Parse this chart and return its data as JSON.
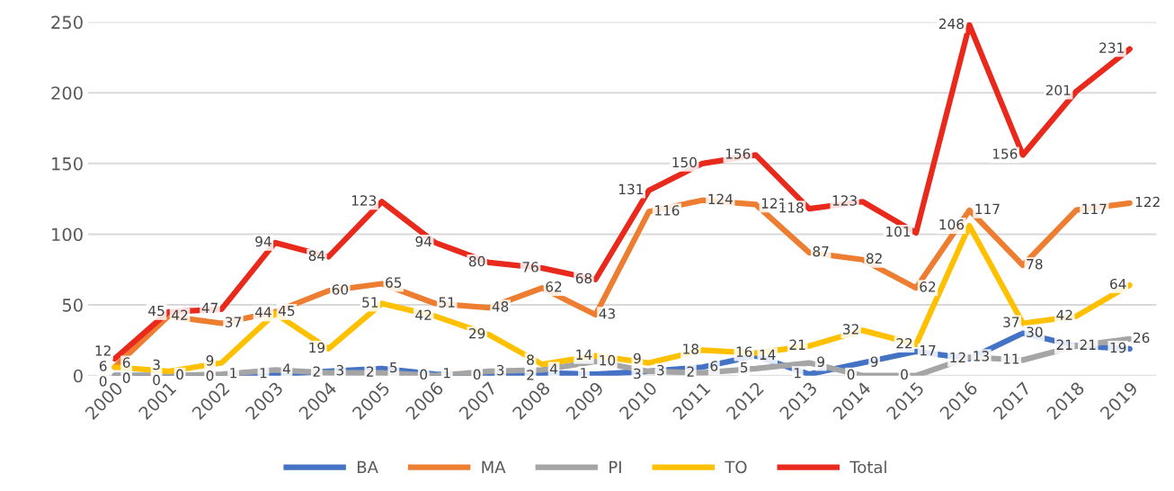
{
  "chart_data": {
    "type": "line",
    "categories": [
      "2000",
      "2001",
      "2002",
      "2003",
      "2004",
      "2005",
      "2006",
      "2007",
      "2008",
      "2009",
      "2010",
      "2011",
      "2012",
      "2013",
      "2014",
      "2015",
      "2016",
      "2017",
      "2018",
      "2019"
    ],
    "series": [
      {
        "name": "BA",
        "color": "#4472c4",
        "values": [
          0,
          0,
          0,
          1,
          3,
          5,
          1,
          0,
          2,
          1,
          3,
          6,
          14,
          1,
          9,
          17,
          12,
          30,
          21,
          19
        ]
      },
      {
        "name": "MA",
        "color": "#ed7d31",
        "values": [
          6,
          42,
          37,
          45,
          60,
          65,
          51,
          48,
          62,
          43,
          116,
          124,
          121,
          87,
          82,
          62,
          117,
          78,
          117,
          122
        ]
      },
      {
        "name": "PI",
        "color": "#a5a5a5",
        "values": [
          0,
          0,
          1,
          4,
          2,
          2,
          0,
          3,
          4,
          10,
          3,
          2,
          5,
          9,
          0,
          0,
          13,
          11,
          21,
          26
        ]
      },
      {
        "name": "TO",
        "color": "#ffc000",
        "values": [
          6,
          3,
          9,
          44,
          19,
          51,
          42,
          29,
          8,
          14,
          9,
          18,
          16,
          21,
          32,
          22,
          106,
          37,
          42,
          64
        ]
      },
      {
        "name": "Total",
        "color": "#e8291c",
        "values": [
          12,
          45,
          47,
          94,
          84,
          123,
          94,
          80,
          76,
          68,
          131,
          150,
          156,
          118,
          123,
          101,
          248,
          156,
          201,
          231
        ]
      }
    ],
    "ylim": [
      0,
      250
    ],
    "yticks": [
      0,
      50,
      100,
      150,
      200,
      250
    ],
    "grid": "y",
    "legend": "bottom",
    "data_labels": true,
    "marker": "none",
    "line_style": "solid"
  }
}
